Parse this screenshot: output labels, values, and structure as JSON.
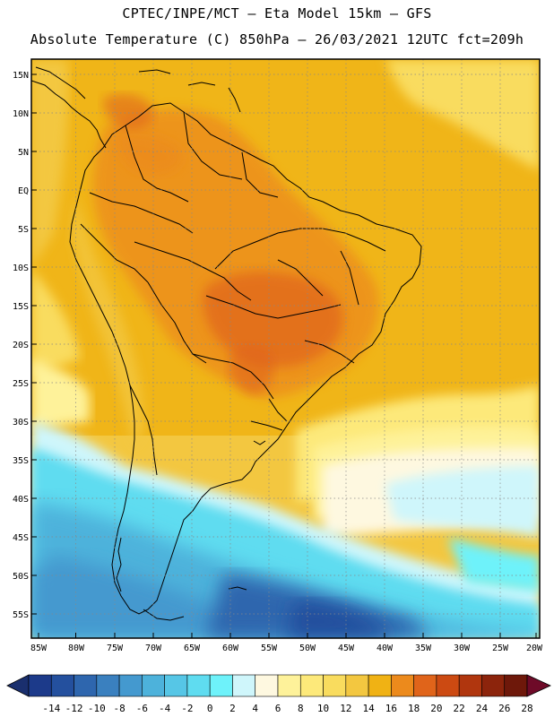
{
  "header": {
    "line1": "CPTEC/INPE/MCT –  Eta Model 15km – GFS",
    "line2": "Absolute Temperature (C) 850hPa – 26/03/2021 12UTC fct=209h"
  },
  "map": {
    "lat_labels": [
      "15N",
      "10N",
      "5N",
      "EQ",
      "5S",
      "10S",
      "15S",
      "20S",
      "25S",
      "30S",
      "35S",
      "40S",
      "45S",
      "50S",
      "55S"
    ],
    "lon_labels": [
      "85W",
      "80W",
      "75W",
      "70W",
      "65W",
      "60W",
      "55W",
      "50W",
      "45W",
      "40W",
      "35W",
      "30W",
      "25W",
      "20W"
    ],
    "grid": "dotted"
  },
  "colorbar": {
    "labels": [
      "-14",
      "-12",
      "-10",
      "-8",
      "-6",
      "-4",
      "-2",
      "0",
      "2",
      "4",
      "6",
      "8",
      "10",
      "12",
      "14",
      "16",
      "18",
      "20",
      "22",
      "24",
      "26",
      "28"
    ],
    "colors": [
      "#1c3a8a",
      "#24509e",
      "#2e66ae",
      "#3a80bf",
      "#4499cf",
      "#4db2db",
      "#56c6e6",
      "#5fdcf0",
      "#6ef2fa",
      "#cff6fb",
      "#fef8e0",
      "#fef29a",
      "#fde97a",
      "#f9dc5e",
      "#f3c740",
      "#f0b214",
      "#ec8a1c",
      "#e0641a",
      "#cc4a12",
      "#b0360e",
      "#8c240c",
      "#6e180a"
    ],
    "under_color": "#1a2f6e",
    "over_color": "#6e0a28"
  }
}
